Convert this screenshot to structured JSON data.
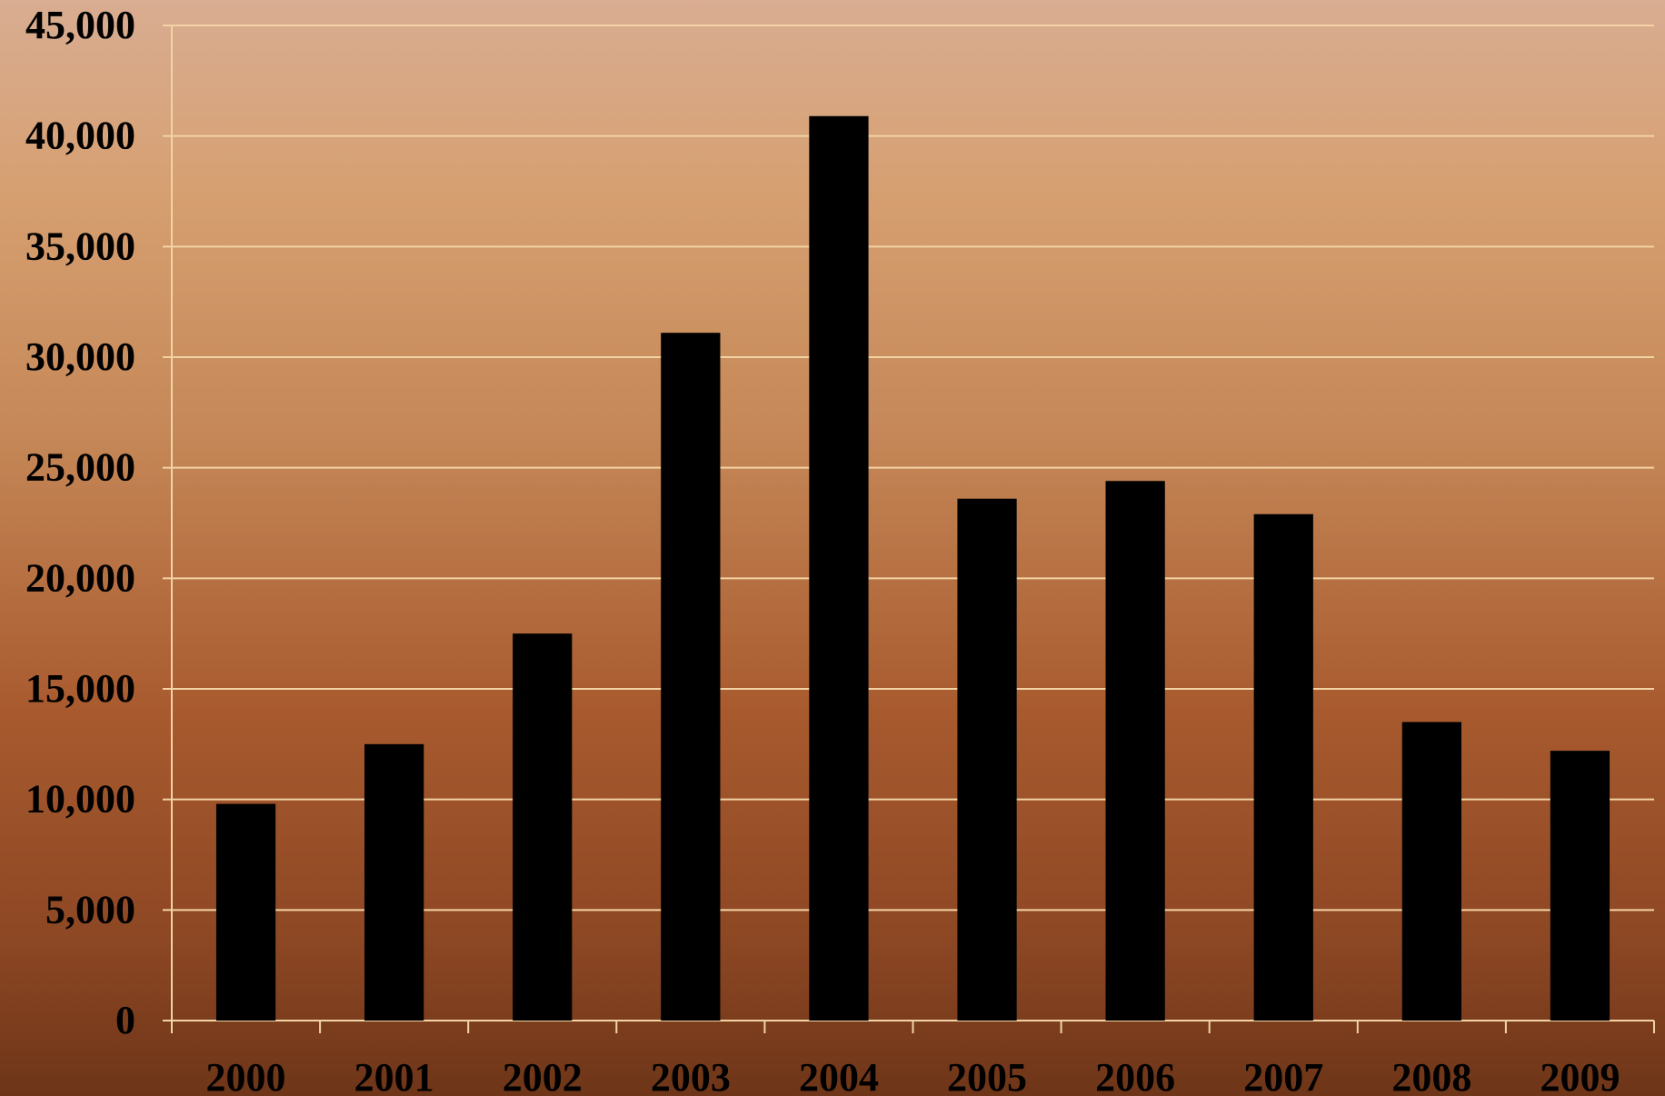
{
  "chart_data": {
    "type": "bar",
    "title": "",
    "xlabel": "",
    "ylabel": "",
    "categories": [
      "2000",
      "2001",
      "2002",
      "2003",
      "2004",
      "2005",
      "2006",
      "2007",
      "2008",
      "2009"
    ],
    "values": [
      9800,
      12500,
      17500,
      31100,
      40900,
      23600,
      24400,
      22900,
      13500,
      12200
    ],
    "ylim": [
      0,
      45000
    ],
    "yticks": [
      0,
      5000,
      10000,
      15000,
      20000,
      25000,
      30000,
      35000,
      40000,
      45000
    ],
    "ytick_labels": [
      "0",
      "5,000",
      "10,000",
      "15,000",
      "20,000",
      "25,000",
      "30,000",
      "35,000",
      "40,000",
      "45,000"
    ],
    "grid": true,
    "legend": "none",
    "colors": {
      "bar": "#000000",
      "gridline": "#f2d3a4",
      "background_top": "#d9ad92",
      "background_bottom": "#6e3518"
    }
  }
}
